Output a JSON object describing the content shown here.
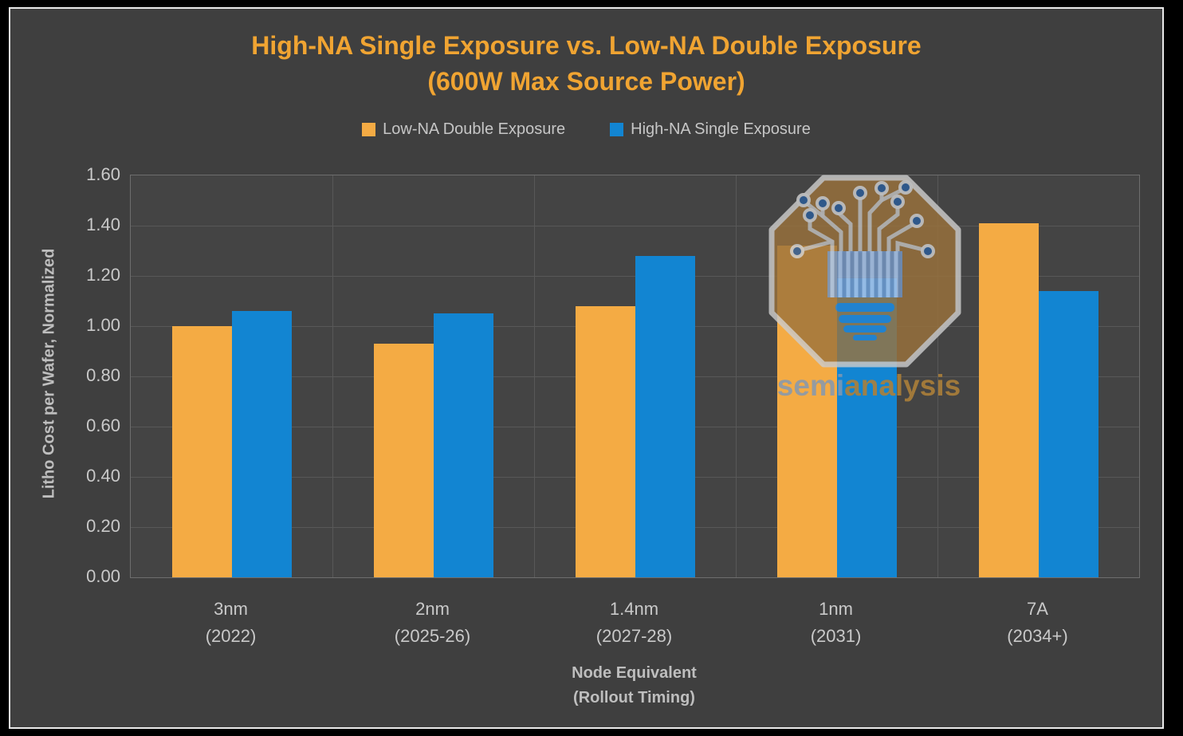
{
  "page": {
    "background": "#000000"
  },
  "chart_style": {
    "background": "#3F3F3F",
    "plot_background": "#444444",
    "frame_border_color": "#E9E9E9",
    "gridline_color": "#585858",
    "axis_text_color": "#C9C9C9",
    "title_color": "#F0A432"
  },
  "title": {
    "line1": "High-NA Single Exposure vs. Low-NA Double Exposure",
    "line2": "(600W Max Source Power)"
  },
  "watermark": {
    "semi": "semi",
    "analysis": "analysis",
    "logo": "semianalysis-circuit-bulb-octagon"
  },
  "chart_data": {
    "type": "bar",
    "title": "High-NA Single Exposure vs. Low-NA Double Exposure (600W Max Source Power)",
    "categories": [
      {
        "node": "3nm",
        "timing": "(2022)"
      },
      {
        "node": "2nm",
        "timing": "(2025-26)"
      },
      {
        "node": "1.4nm",
        "timing": "(2027-28)"
      },
      {
        "node": "1nm",
        "timing": "(2031)"
      },
      {
        "node": "7A",
        "timing": "(2034+)"
      }
    ],
    "series": [
      {
        "name": "Low-NA Double Exposure",
        "color": "#F4AB44",
        "values": [
          1.0,
          0.93,
          1.08,
          1.32,
          1.41
        ]
      },
      {
        "name": "High-NA Single Exposure",
        "color": "#1285D2",
        "values": [
          1.06,
          1.05,
          1.28,
          1.19,
          1.14
        ]
      }
    ],
    "xlabel": [
      "Node Equivalent",
      "(Rollout Timing)"
    ],
    "ylabel": "Litho Cost per Wafer, Normalized",
    "ylim": [
      0,
      1.6
    ],
    "ytick_step": 0.2,
    "ytick_decimals": 2,
    "grid": true,
    "legend_position": "top"
  }
}
